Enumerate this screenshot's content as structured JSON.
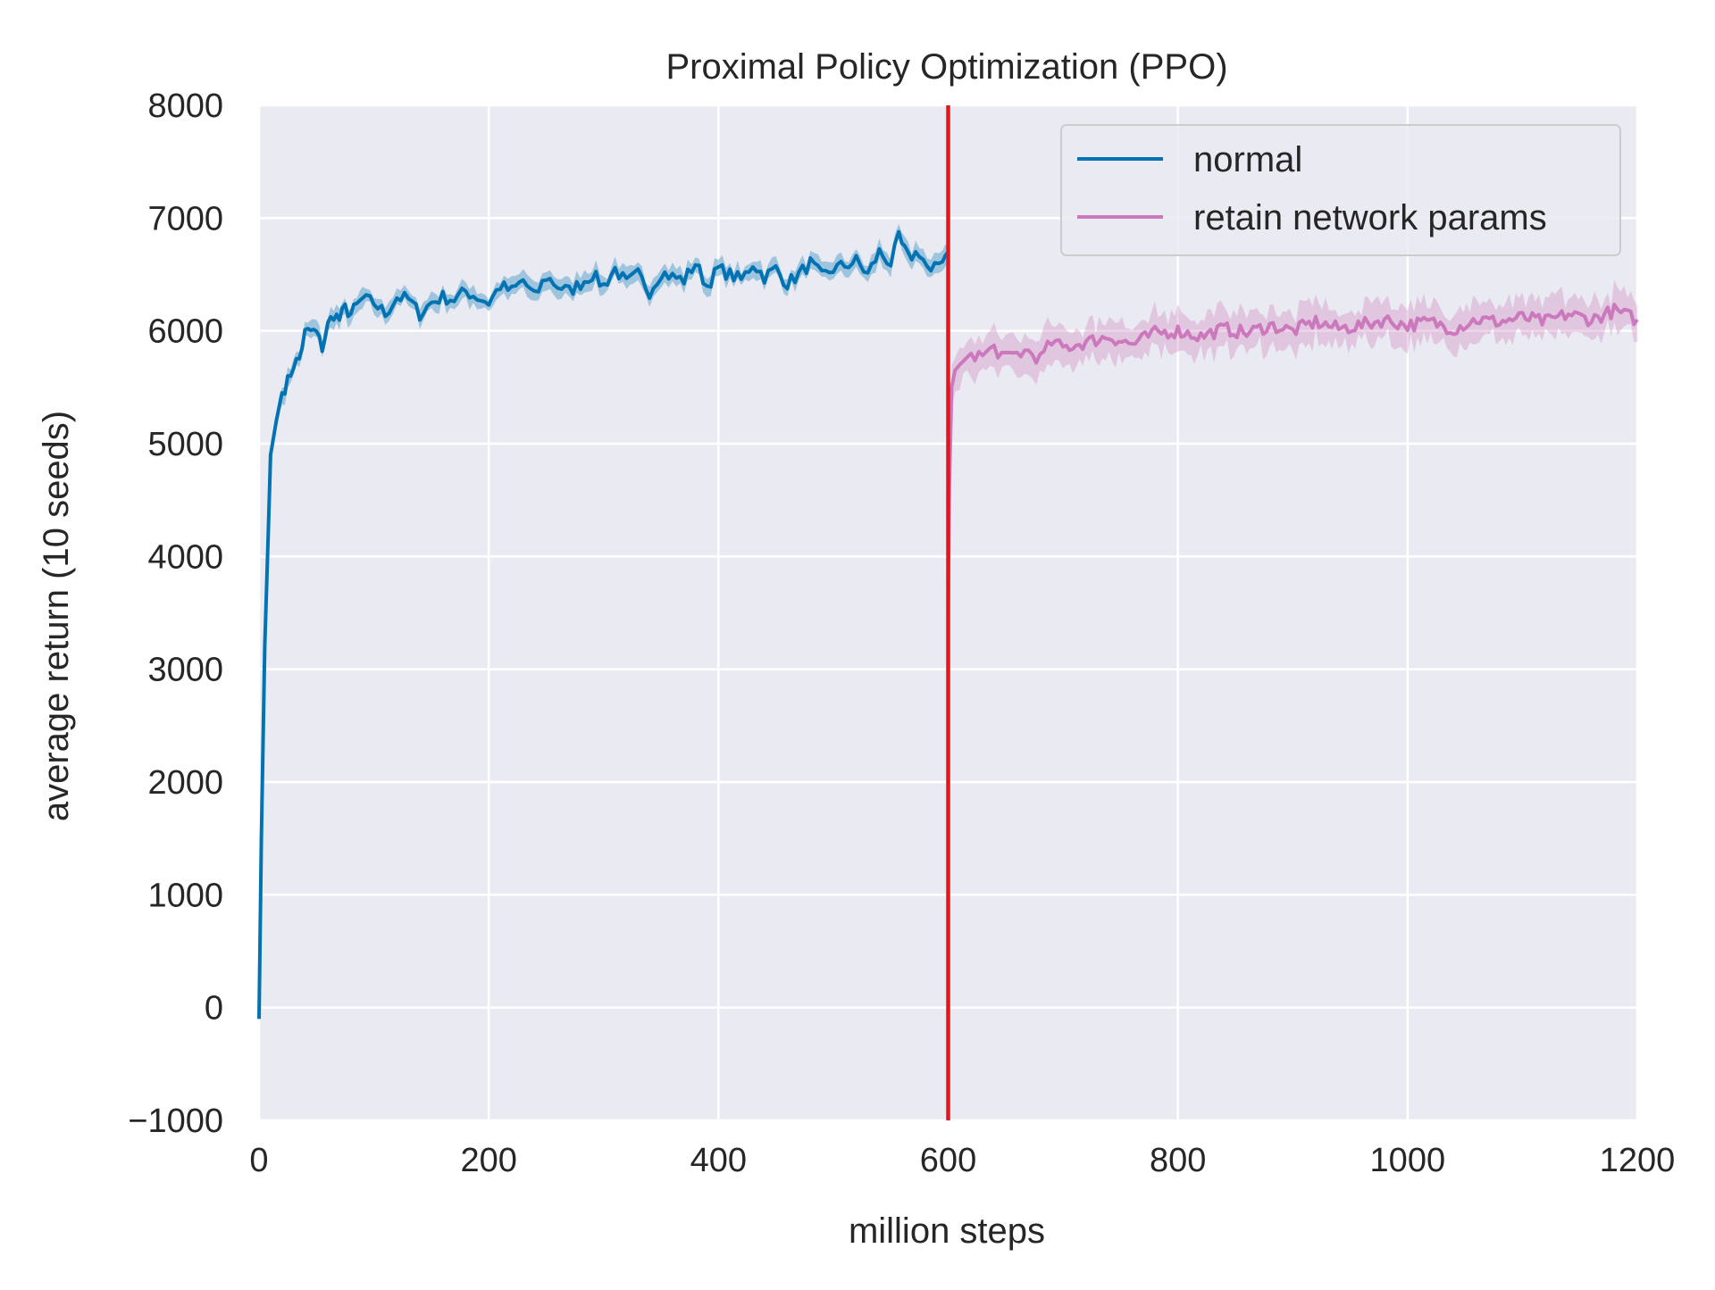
{
  "chart_data": {
    "type": "line",
    "title": "Proximal Policy Optimization (PPO)",
    "xlabel": "million steps",
    "ylabel": "average return (10 seeds)",
    "xlim": [
      0,
      1200
    ],
    "ylim": [
      -1000,
      8000
    ],
    "xticks": [
      0,
      200,
      400,
      600,
      800,
      1000,
      1200
    ],
    "xtick_labels": [
      "0",
      "200",
      "400",
      "600",
      "800",
      "1000",
      "1200"
    ],
    "yticks": [
      -1000,
      0,
      1000,
      2000,
      3000,
      4000,
      5000,
      6000,
      7000,
      8000
    ],
    "ytick_labels": [
      "−1000",
      "0",
      "1000",
      "2000",
      "3000",
      "4000",
      "5000",
      "6000",
      "7000",
      "8000"
    ],
    "grid": true,
    "legend_position": "top-right",
    "vline": {
      "x": 600,
      "color": "#e8141c"
    },
    "series": [
      {
        "name": "normal",
        "color": "#0173b2",
        "band_width": 150,
        "x": [
          0,
          2,
          5,
          8,
          10,
          15,
          20,
          25,
          30,
          35,
          40,
          45,
          50,
          55,
          60,
          65,
          70,
          75,
          80,
          85,
          90,
          100,
          110,
          120,
          130,
          140,
          150,
          160,
          170,
          180,
          190,
          200,
          210,
          220,
          230,
          240,
          250,
          260,
          270,
          280,
          290,
          300,
          310,
          320,
          330,
          340,
          350,
          360,
          370,
          380,
          390,
          400,
          410,
          420,
          430,
          440,
          450,
          460,
          470,
          480,
          490,
          500,
          510,
          520,
          530,
          540,
          550,
          557,
          565,
          575,
          585,
          595,
          600
        ],
        "y": [
          -100,
          1500,
          3200,
          4200,
          4900,
          5200,
          5450,
          5550,
          5700,
          5750,
          5980,
          6000,
          5980,
          5850,
          6050,
          6150,
          6100,
          6200,
          6150,
          6220,
          6280,
          6250,
          6150,
          6300,
          6280,
          6150,
          6250,
          6300,
          6280,
          6350,
          6300,
          6250,
          6400,
          6350,
          6450,
          6300,
          6480,
          6400,
          6350,
          6420,
          6500,
          6400,
          6550,
          6420,
          6500,
          6350,
          6520,
          6480,
          6450,
          6600,
          6400,
          6550,
          6500,
          6450,
          6600,
          6480,
          6550,
          6420,
          6500,
          6600,
          6480,
          6550,
          6580,
          6620,
          6500,
          6700,
          6600,
          6820,
          6650,
          6700,
          6500,
          6650,
          6700
        ]
      },
      {
        "name": "retain network params",
        "color": "#cc78bc",
        "band_width": 330,
        "x": [
          600,
          601,
          603,
          606,
          610,
          620,
          630,
          640,
          650,
          660,
          670,
          680,
          690,
          700,
          720,
          740,
          760,
          780,
          800,
          820,
          840,
          860,
          880,
          900,
          920,
          940,
          960,
          980,
          1000,
          1020,
          1040,
          1060,
          1080,
          1100,
          1120,
          1140,
          1160,
          1180,
          1200
        ],
        "y": [
          3500,
          4600,
          5500,
          5650,
          5700,
          5800,
          5780,
          5850,
          5750,
          5800,
          5820,
          5750,
          5900,
          5850,
          5900,
          5950,
          5880,
          5980,
          6000,
          5950,
          6020,
          5980,
          6050,
          6000,
          6080,
          6020,
          6050,
          6100,
          6050,
          6080,
          6020,
          6100,
          6080,
          6120,
          6080,
          6150,
          6100,
          6180,
          6100
        ]
      }
    ]
  }
}
